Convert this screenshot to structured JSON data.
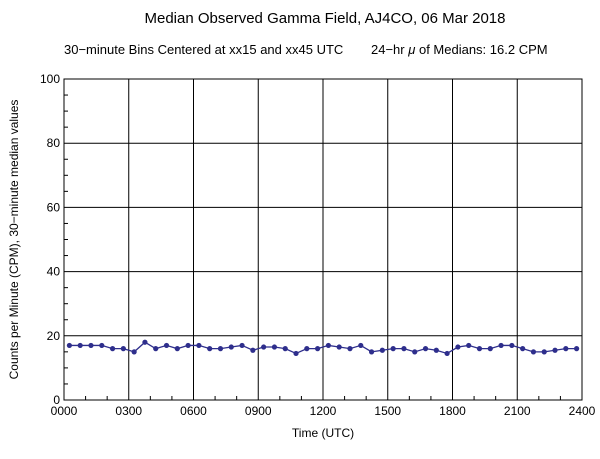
{
  "chart_data": {
    "type": "line",
    "title": "Median Observed Gamma Field, AJ4CO, 06 Mar 2018",
    "subtitle_left": "30−minute Bins Centered at xx15 and xx45 UTC",
    "subtitle_right_prefix": "24−hr ",
    "subtitle_right_mu": "μ",
    "subtitle_right_suffix": " of Medians: 16.2 CPM",
    "xlabel": "Time (UTC)",
    "ylabel": "Counts per Minute (CPM), 30−minute median values",
    "xlim": [
      0,
      2400
    ],
    "ylim": [
      0,
      100
    ],
    "x_ticks": [
      0,
      300,
      600,
      900,
      1200,
      1500,
      1800,
      2100,
      2400
    ],
    "x_tick_labels": [
      "0000",
      "0300",
      "0600",
      "0900",
      "1200",
      "1500",
      "1800",
      "2100",
      "2400"
    ],
    "y_ticks": [
      0,
      20,
      40,
      60,
      80,
      100
    ],
    "y_tick_labels": [
      "0",
      "20",
      "40",
      "60",
      "80",
      "100"
    ],
    "grid": true,
    "series": [
      {
        "color": "#2e2e8c",
        "x": [
          "0015",
          "0045",
          "0115",
          "0145",
          "0215",
          "0245",
          "0315",
          "0345",
          "0415",
          "0445",
          "0515",
          "0545",
          "0615",
          "0645",
          "0715",
          "0745",
          "0815",
          "0845",
          "0915",
          "0945",
          "1015",
          "1045",
          "1115",
          "1145",
          "1215",
          "1245",
          "1315",
          "1345",
          "1415",
          "1445",
          "1515",
          "1545",
          "1615",
          "1645",
          "1715",
          "1745",
          "1815",
          "1845",
          "1915",
          "1945",
          "2015",
          "2045",
          "2115",
          "2145",
          "2215",
          "2245",
          "2315",
          "2345"
        ],
        "values": [
          17,
          17,
          17,
          17,
          16,
          16,
          15,
          18,
          16,
          17,
          16,
          17,
          17,
          16,
          16,
          16.5,
          17,
          15.5,
          16.5,
          16.5,
          16,
          14.5,
          16,
          16,
          17,
          16.5,
          16,
          17,
          15,
          15.5,
          16,
          16,
          15,
          16,
          15.5,
          14.5,
          16.5,
          17,
          16,
          16,
          17,
          17,
          16,
          15,
          15,
          15.5,
          16,
          16
        ]
      }
    ]
  }
}
